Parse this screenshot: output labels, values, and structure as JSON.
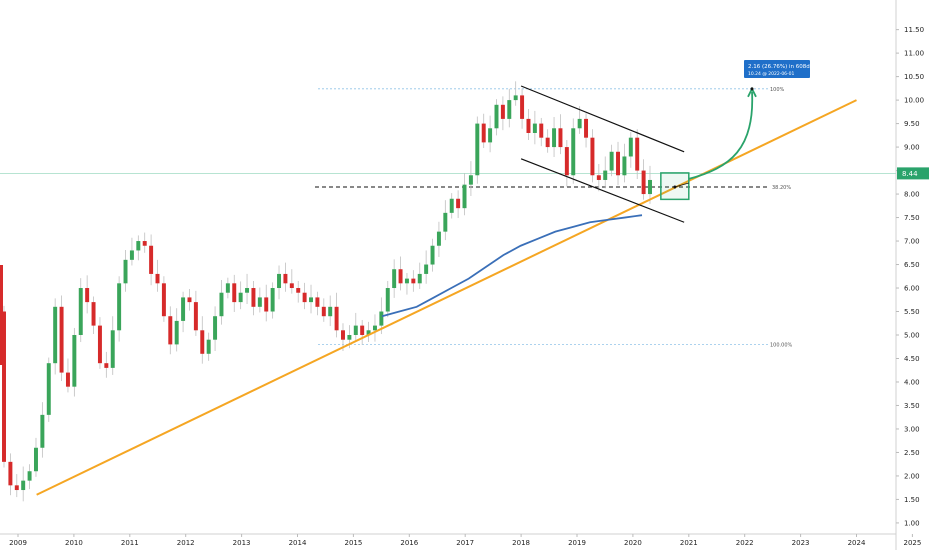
{
  "chart_data": {
    "type": "candlestick",
    "x_axis": {
      "type": "date",
      "ticks": [
        "2009",
        "2010",
        "2011",
        "2012",
        "2013",
        "2014",
        "2015",
        "2016",
        "2017",
        "2018",
        "2019",
        "2020",
        "2021",
        "2022",
        "2023",
        "2024",
        "2025"
      ]
    },
    "y_axis": {
      "ticks": [
        "1.00",
        "1.50",
        "2.00",
        "2.50",
        "3.00",
        "3.50",
        "4.00",
        "4.50",
        "5.00",
        "5.50",
        "6.00",
        "6.50",
        "7.00",
        "7.50",
        "8.00",
        "8.50",
        "9.00",
        "9.50",
        "10.00",
        "10.50",
        "11.00",
        "11.50"
      ],
      "ylim": [
        0.8,
        12.2
      ],
      "side": "right"
    },
    "last_price": {
      "value": 8.44,
      "label": "8.44"
    },
    "candles_close": [
      2.3,
      1.8,
      1.7,
      1.9,
      2.1,
      2.6,
      3.3,
      4.4,
      5.6,
      4.2,
      3.9,
      5.0,
      6.0,
      5.7,
      5.2,
      4.4,
      4.3,
      5.1,
      6.1,
      6.6,
      6.8,
      7.0,
      6.9,
      6.3,
      6.1,
      5.4,
      4.8,
      5.3,
      5.8,
      5.7,
      5.1,
      4.6,
      4.9,
      5.4,
      5.9,
      6.1,
      5.7,
      5.9,
      6.0,
      5.6,
      5.8,
      5.5,
      6.0,
      6.3,
      6.1,
      6.0,
      5.9,
      5.7,
      5.8,
      5.6,
      5.4,
      5.6,
      5.1,
      4.9,
      5.0,
      5.2,
      5.0,
      5.1,
      5.2,
      5.5,
      6.0,
      6.4,
      6.1,
      6.2,
      6.1,
      6.3,
      6.5,
      6.9,
      7.2,
      7.6,
      7.9,
      7.7,
      8.2,
      8.4,
      9.5,
      9.1,
      9.4,
      9.9,
      9.6,
      10.0,
      10.1,
      9.6,
      9.3,
      9.5,
      9.2,
      9.0,
      9.4,
      9.0,
      8.4,
      9.4,
      9.6,
      9.2,
      8.4,
      8.3,
      8.5,
      8.9,
      8.4,
      8.8,
      9.2,
      8.5,
      8.0,
      8.3
    ],
    "indicators": [
      {
        "type": "trendline",
        "color": "#f5a623",
        "from": [
          "2009-05",
          1.6
        ],
        "to": [
          "2024-01",
          10.0
        ]
      },
      {
        "type": "moving_average",
        "color": "#3a6fb8",
        "values": [
          5.4,
          5.5,
          5.6,
          5.8,
          6.0,
          6.2,
          6.45,
          6.7,
          6.9,
          7.05,
          7.2,
          7.3,
          7.4,
          7.45,
          7.5,
          7.55
        ]
      },
      {
        "type": "channel",
        "upper": [
          [
            "2018-01",
            10.3
          ],
          [
            "2020-12",
            8.9
          ]
        ],
        "lower": [
          [
            "2018-01",
            8.75
          ],
          [
            "2020-12",
            7.4
          ]
        ]
      }
    ],
    "levels": [
      {
        "value": 10.24,
        "label": "100%",
        "style": "dotted",
        "color": "#90c4e8"
      },
      {
        "value": 8.15,
        "label": "38.20%",
        "style": "dashed",
        "color": "#111111"
      },
      {
        "value": 4.8,
        "label": "100.00%",
        "style": "dotted",
        "color": "#90c4e8"
      }
    ],
    "projection": {
      "box": [
        8.1,
        8.45,
        "2020-07",
        "2021-01"
      ],
      "target": 10.24,
      "label_line1": "2.16 (26.76%) in 608d",
      "label_line2": "10.24 @ 2022-06-01"
    }
  }
}
